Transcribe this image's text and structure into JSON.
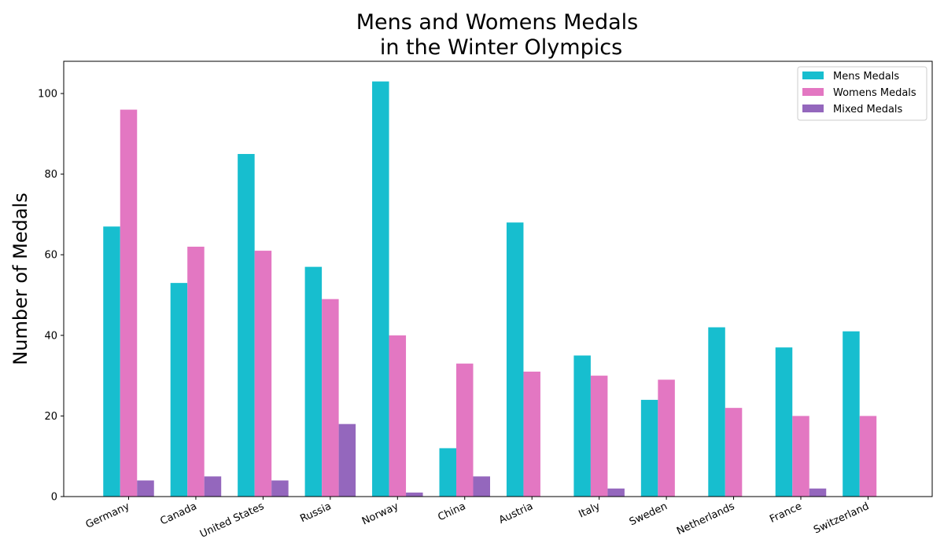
{
  "chart_data": {
    "type": "bar",
    "title_line1": "Mens and Womens Medals",
    "title_line2": "in the Winter Olympics",
    "xlabel": "",
    "ylabel": "Number of Medals",
    "ylim": [
      0,
      108
    ],
    "yticks": [
      0,
      20,
      40,
      60,
      80,
      100
    ],
    "grid": false,
    "legend_position": "top-right",
    "categories": [
      "Germany",
      "Canada",
      "United States",
      "Russia",
      "Norway",
      "China",
      "Austria",
      "Italy",
      "Sweden",
      "Netherlands",
      "France",
      "Switzerland"
    ],
    "series": [
      {
        "name": "Mens Medals",
        "color": "#17becf",
        "values": [
          67,
          53,
          85,
          57,
          103,
          12,
          68,
          35,
          24,
          42,
          37,
          41
        ]
      },
      {
        "name": "Womens Medals",
        "color": "#e377c2",
        "values": [
          96,
          62,
          61,
          49,
          40,
          33,
          31,
          30,
          29,
          22,
          20,
          20
        ]
      },
      {
        "name": "Mixed Medals",
        "color": "#9467bd",
        "values": [
          4,
          5,
          4,
          18,
          1,
          5,
          0,
          2,
          0,
          0,
          2,
          0
        ]
      }
    ]
  }
}
